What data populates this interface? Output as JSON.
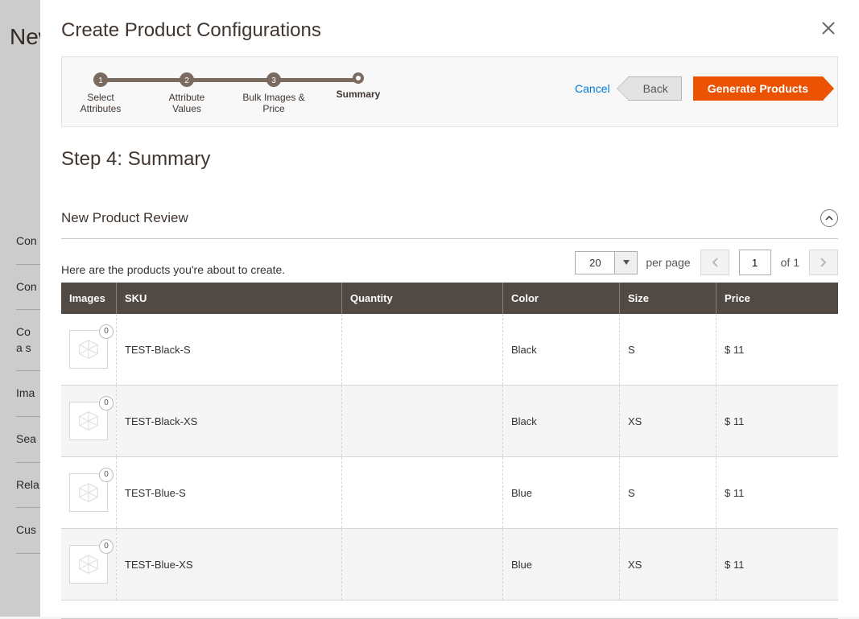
{
  "background": {
    "page_title": "New",
    "side_items": [
      "Con",
      "Con",
      "Con\na si",
      "Ima",
      "Sea",
      "Rela",
      "Cus"
    ]
  },
  "modal": {
    "title": "Create Product Configurations",
    "steps": [
      {
        "num": "1",
        "label": "Select\nAttributes"
      },
      {
        "num": "2",
        "label": "Attribute\nValues"
      },
      {
        "num": "3",
        "label": "Bulk Images &\nPrice"
      },
      {
        "num": "",
        "label": "Summary",
        "current": true
      }
    ],
    "actions": {
      "cancel": "Cancel",
      "back": "Back",
      "generate": "Generate Products"
    },
    "step_heading": "Step 4: Summary",
    "section_title": "New Product Review",
    "intro": "Here are the products you're about to create.",
    "pager": {
      "per_page": "20",
      "per_page_label": "per page",
      "page": "1",
      "of_label": "of 1"
    },
    "columns": [
      "Images",
      "SKU",
      "Quantity",
      "Color",
      "Size",
      "Price"
    ],
    "column_widths": [
      "68px",
      "280px",
      "200px",
      "145px",
      "120px",
      ""
    ],
    "rows": [
      {
        "badge": "0",
        "sku": "TEST-Black-S",
        "qty": "",
        "color": "Black",
        "size": "S",
        "price": "$ 11"
      },
      {
        "badge": "0",
        "sku": "TEST-Black-XS",
        "qty": "",
        "color": "Black",
        "size": "XS",
        "price": "$ 11"
      },
      {
        "badge": "0",
        "sku": "TEST-Blue-S",
        "qty": "",
        "color": "Blue",
        "size": "S",
        "price": "$ 11"
      },
      {
        "badge": "0",
        "sku": "TEST-Blue-XS",
        "qty": "",
        "color": "Blue",
        "size": "XS",
        "price": "$ 11"
      }
    ]
  },
  "colors": {
    "accent": "#eb5202",
    "link": "#007bdb",
    "header_bg": "#514943",
    "step_color": "#7a6a5f"
  }
}
